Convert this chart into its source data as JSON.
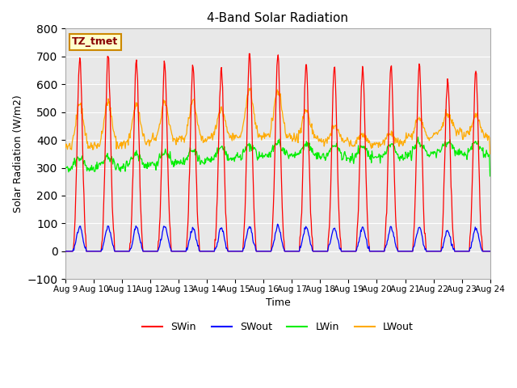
{
  "title": "4-Band Solar Radiation",
  "xlabel": "Time",
  "ylabel": "Solar Radiation (W/m2)",
  "ylim": [
    -100,
    800
  ],
  "yticks": [
    -100,
    0,
    100,
    200,
    300,
    400,
    500,
    600,
    700,
    800
  ],
  "xlim": [
    0,
    15
  ],
  "xtick_labels": [
    "Aug 9",
    "Aug 10",
    "Aug 11",
    "Aug 12",
    "Aug 13",
    "Aug 14",
    "Aug 15",
    "Aug 16",
    "Aug 17",
    "Aug 18",
    "Aug 19",
    "Aug 20",
    "Aug 21",
    "Aug 22",
    "Aug 23",
    "Aug 24"
  ],
  "bg_color": "#e8e8e8",
  "annotation_text": "TZ_tmet",
  "annotation_bg": "#ffffcc",
  "annotation_border": "#cc8800",
  "colors": {
    "SWin": "#ff0000",
    "SWout": "#0000ff",
    "LWin": "#00ee00",
    "LWout": "#ffaa00"
  },
  "legend_labels": [
    "SWin",
    "SWout",
    "LWin",
    "LWout"
  ]
}
